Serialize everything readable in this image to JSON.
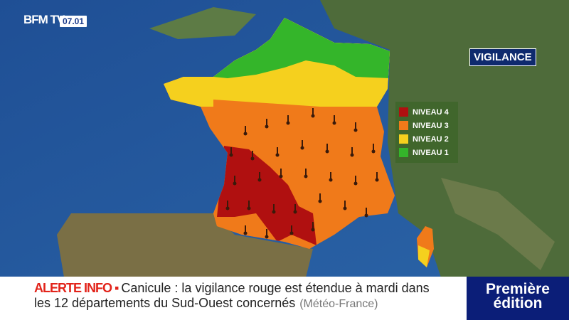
{
  "channel": {
    "logo": "BFM TV.",
    "time": "07.01"
  },
  "map_title": "VIGILANCE",
  "legend": [
    {
      "label": "NIVEAU 4",
      "color": "#b01010"
    },
    {
      "label": "NIVEAU 3",
      "color": "#f07a1a"
    },
    {
      "label": "NIVEAU 2",
      "color": "#f5d01e"
    },
    {
      "label": "NIVEAU 1",
      "color": "#34b52a"
    }
  ],
  "ticker": {
    "alert": "ALERTE INFO",
    "line1": "Canicule : la vigilance rouge est étendue à mardi dans",
    "line2": "les 12 départements du Sud-Ouest concernés",
    "source": "(Météo-France)"
  },
  "show": {
    "line1": "Première",
    "line2": "édition"
  },
  "icons": {
    "department_marker": "thermometer-icon"
  }
}
